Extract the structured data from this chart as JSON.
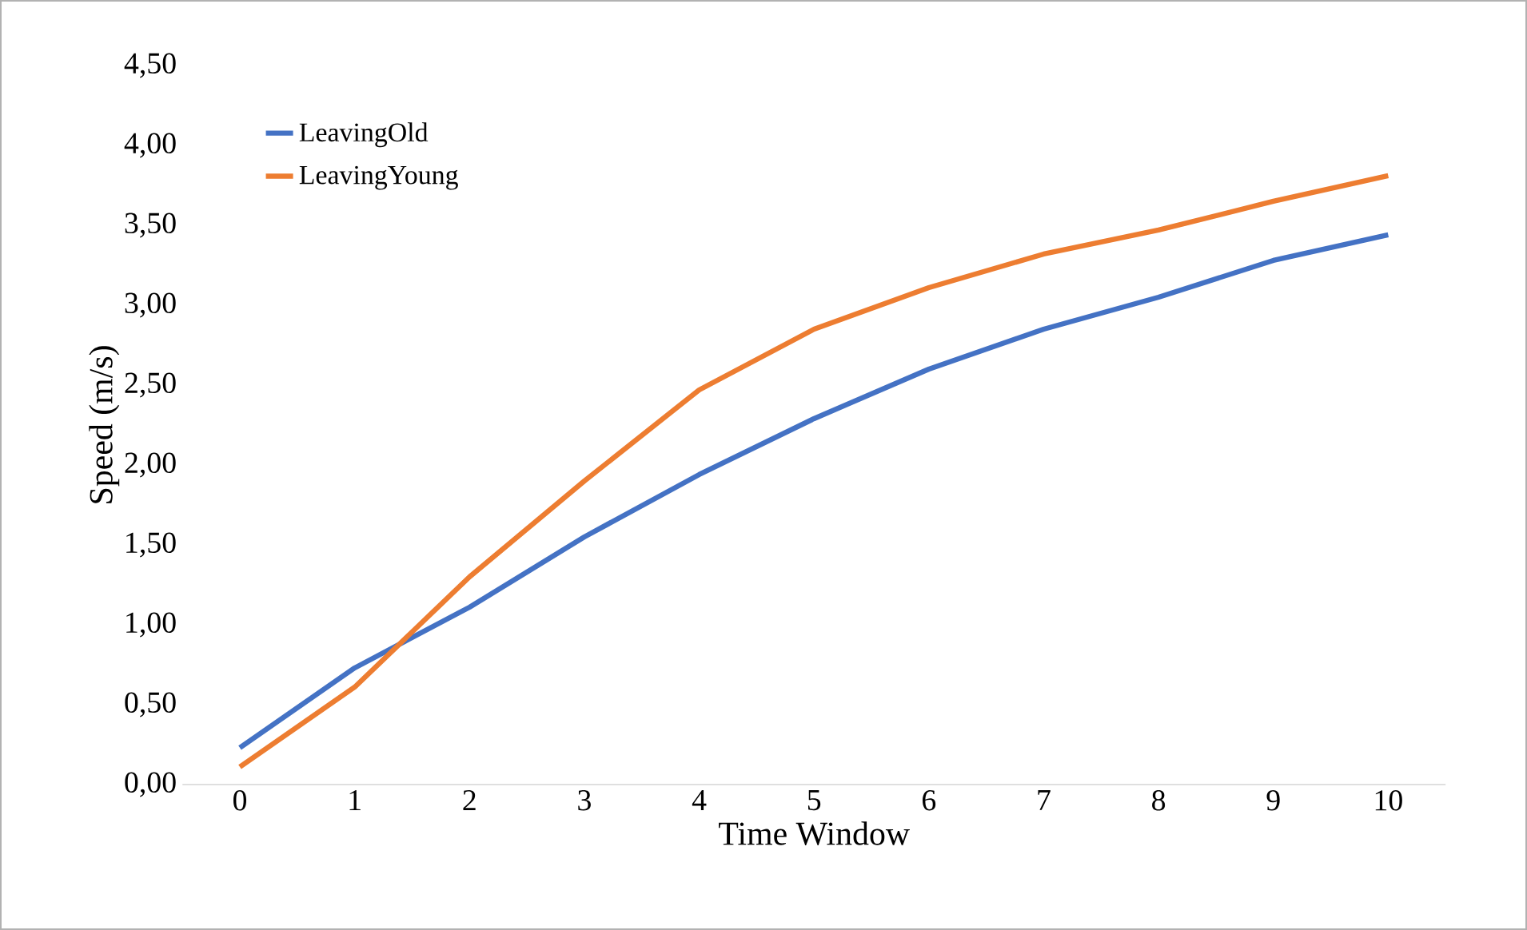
{
  "chart_data": {
    "type": "line",
    "xlabel": "Time Window",
    "ylabel": "Speed (m/s)",
    "categories": [
      "0",
      "1",
      "2",
      "3",
      "4",
      "5",
      "6",
      "7",
      "8",
      "9",
      "10"
    ],
    "series": [
      {
        "name": "LeavingOld",
        "color": "#4472c4",
        "values": [
          0.23,
          0.73,
          1.11,
          1.55,
          1.94,
          2.29,
          2.6,
          2.85,
          3.05,
          3.28,
          3.44
        ]
      },
      {
        "name": "LeavingYoung",
        "color": "#ed7d31",
        "values": [
          0.11,
          0.61,
          1.3,
          1.9,
          2.47,
          2.85,
          3.11,
          3.32,
          3.47,
          3.65,
          3.81
        ]
      }
    ],
    "ylim": [
      0,
      4.5
    ],
    "yticks": [
      {
        "value": 0,
        "label": "0,00"
      },
      {
        "value": 0.5,
        "label": "0,50"
      },
      {
        "value": 1,
        "label": "1,00"
      },
      {
        "value": 1.5,
        "label": "1,50"
      },
      {
        "value": 2,
        "label": "2,00"
      },
      {
        "value": 2.5,
        "label": "2,50"
      },
      {
        "value": 3,
        "label": "3,00"
      },
      {
        "value": 3.5,
        "label": "3,50"
      },
      {
        "value": 4,
        "label": "4,00"
      },
      {
        "value": 4.5,
        "label": "4,50"
      }
    ],
    "grid": false,
    "legend": "top left",
    "marker": "none",
    "line_style": "solid"
  }
}
